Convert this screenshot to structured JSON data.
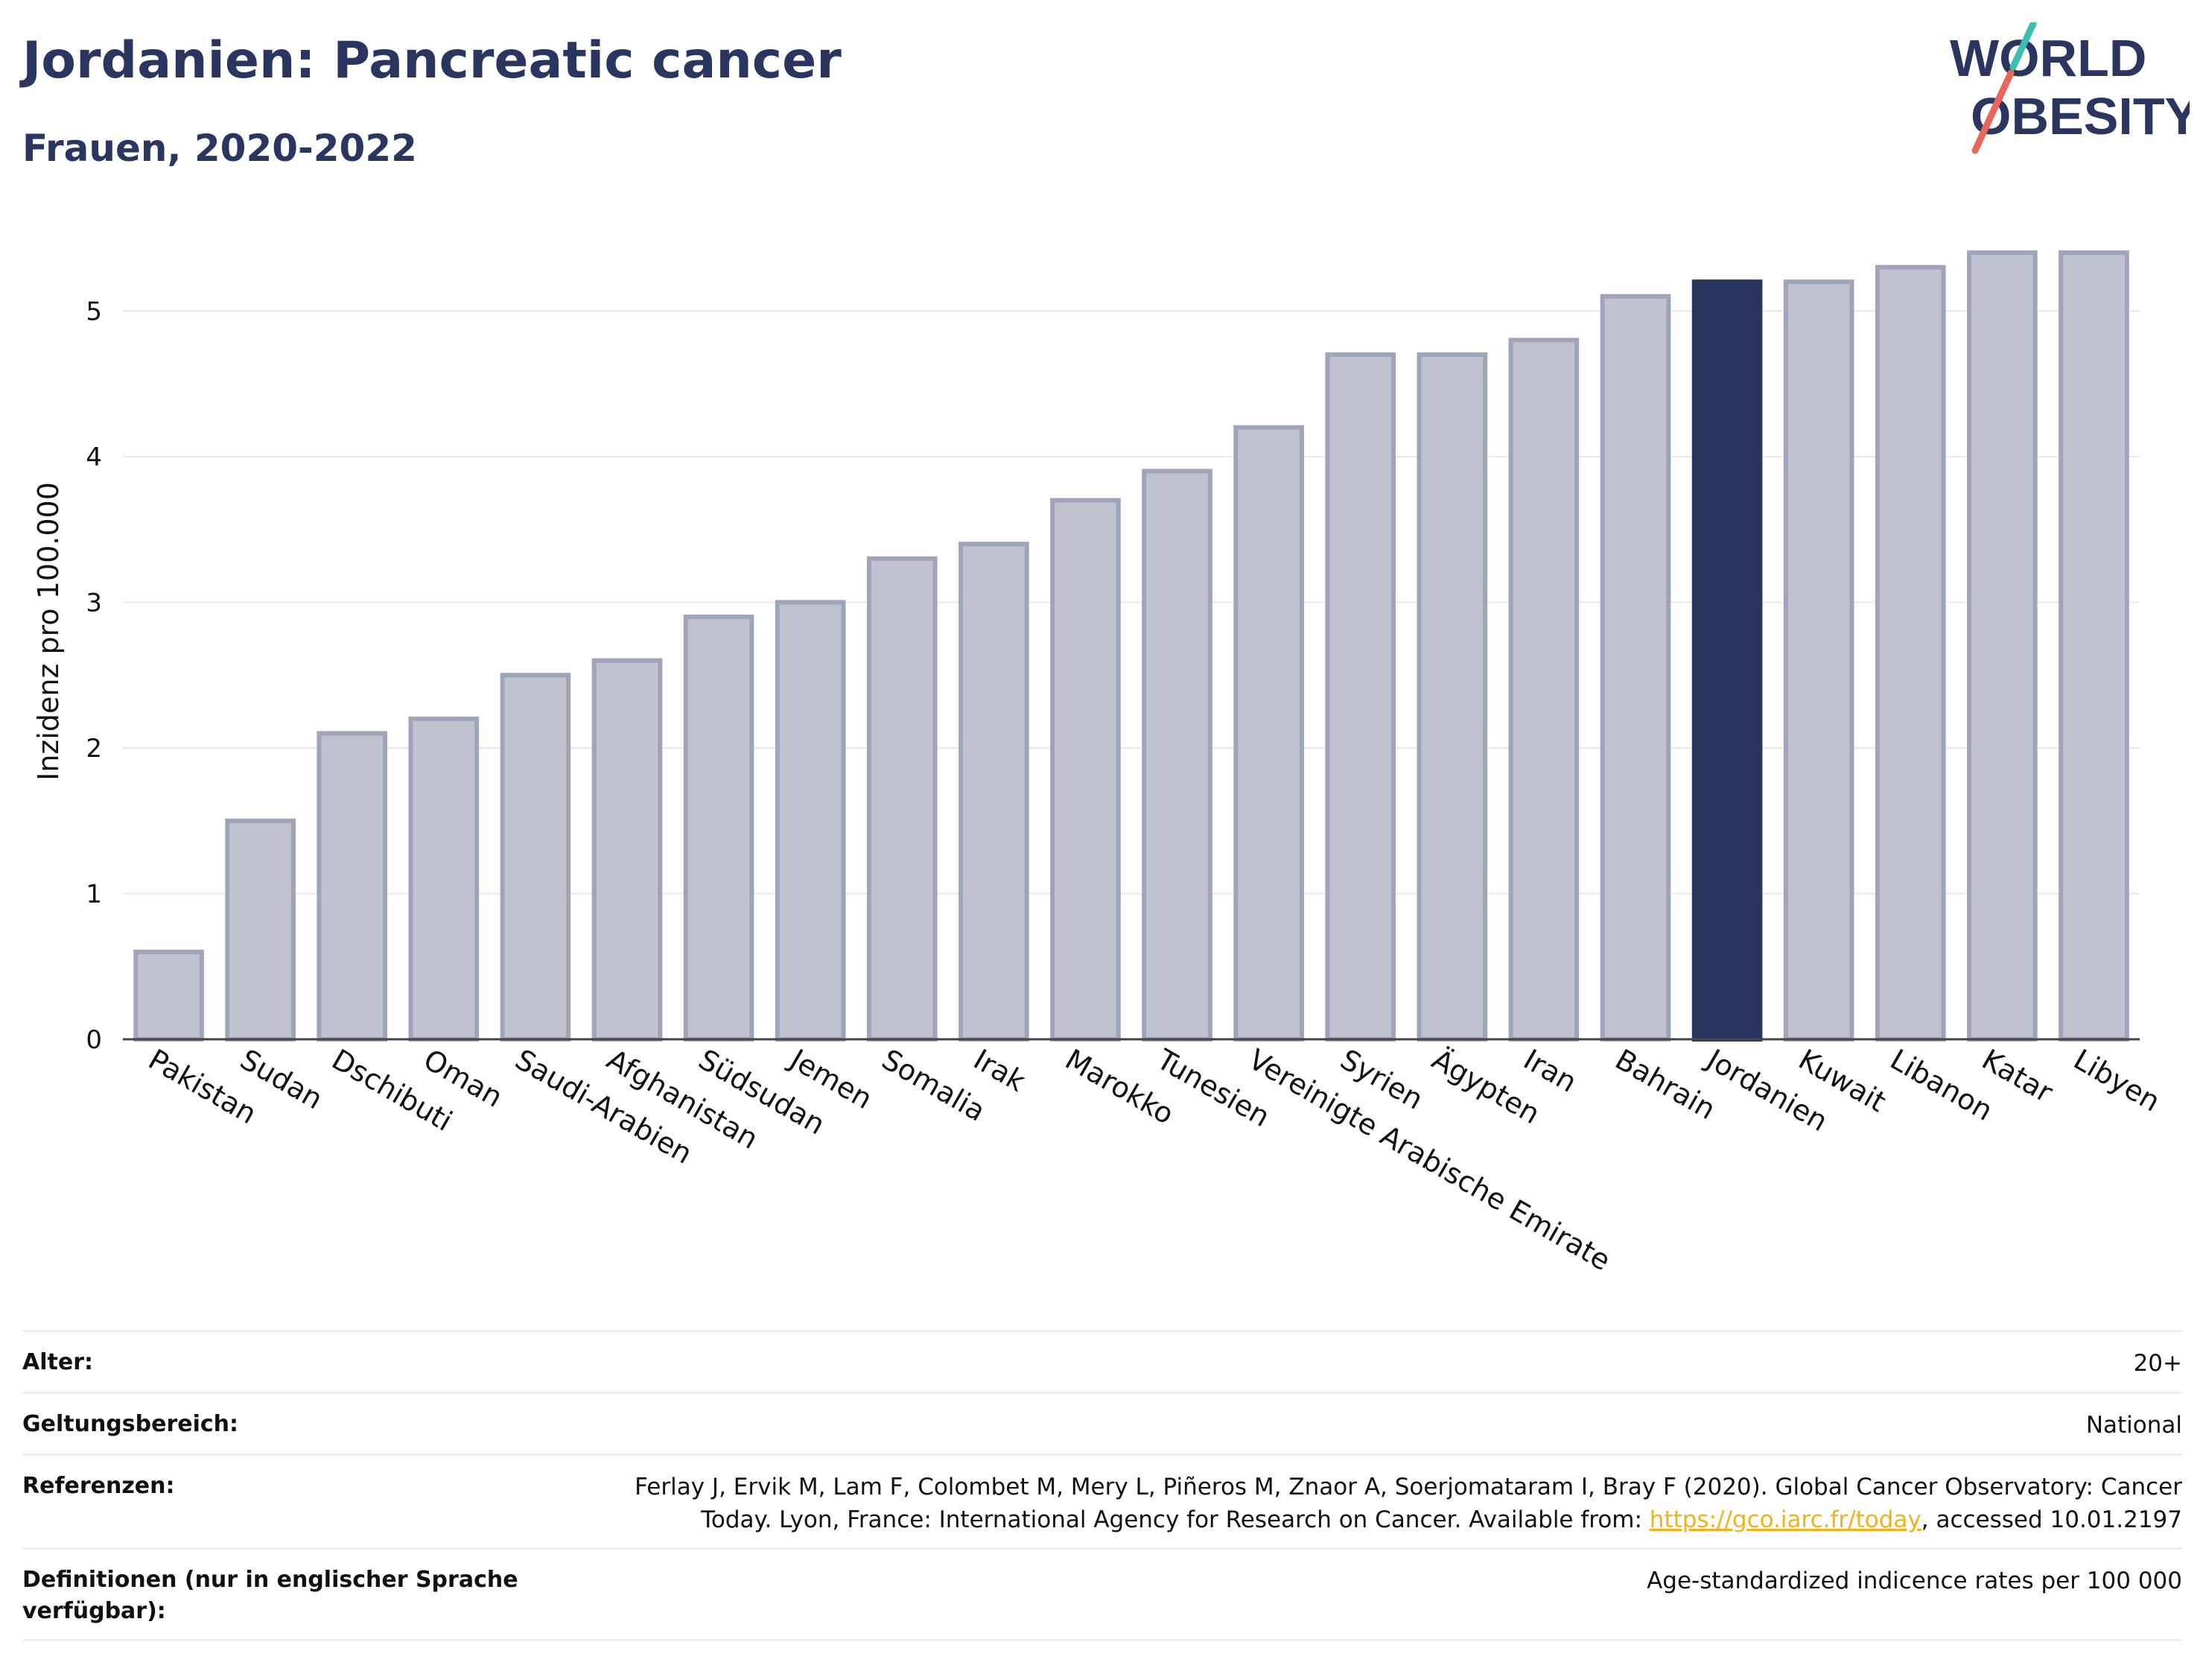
{
  "header": {
    "title": "Jordanien: Pancreatic cancer",
    "subtitle": "Frauen, 2020-2022"
  },
  "logo": {
    "line1": "WORLD",
    "line2": "OBESITY"
  },
  "colors": {
    "brand": "#2a3560",
    "bar": "#bfc3d0",
    "bar_border": "#9ea4ba",
    "highlight": "#2a3560",
    "logo_teal": "#3bbfb3",
    "logo_red": "#e8675d",
    "link": "#f1b21b"
  },
  "chart_data": {
    "type": "bar",
    "categories": [
      "Pakistan",
      "Sudan",
      "Dschibuti",
      "Oman",
      "Saudi-Arabien",
      "Afghanistan",
      "Südsudan",
      "Jemen",
      "Somalia",
      "Irak",
      "Marokko",
      "Tunesien",
      "Vereinigte Arabische Emirate",
      "Syrien",
      "Ägypten",
      "Iran",
      "Bahrain",
      "Jordanien",
      "Kuwait",
      "Libanon",
      "Katar",
      "Libyen"
    ],
    "values": [
      0.6,
      1.5,
      2.1,
      2.2,
      2.5,
      2.6,
      2.9,
      3.0,
      3.3,
      3.4,
      3.7,
      3.9,
      4.2,
      4.7,
      4.7,
      4.8,
      5.1,
      5.2,
      5.2,
      5.3,
      5.4,
      5.4
    ],
    "highlight": "Jordanien",
    "ylabel": "Inzidenz pro 100.000",
    "xlabel": "",
    "ylim": [
      0,
      5.6
    ],
    "yticks": [
      0,
      1,
      2,
      3,
      4,
      5
    ],
    "grid": true
  },
  "meta": {
    "age_label": "Alter:",
    "age_value": "20+",
    "scope_label": "Geltungsbereich:",
    "scope_value": "National",
    "ref_label": "Referenzen:",
    "ref_text_before": "Ferlay J, Ervik M, Lam F, Colombet M, Mery L, Piñeros M, Znaor A, Soerjomataram I, Bray F (2020). Global Cancer Observatory: Cancer Today. Lyon, France: International Agency for Research on Cancer. Available from: ",
    "ref_link": "https://gco.iarc.fr/today",
    "ref_text_after": ", accessed 10.01.2197",
    "def_label": "Definitionen (nur in englischer Sprache verfügbar):",
    "def_value": "Age-standardized indicence rates per 100 000"
  }
}
